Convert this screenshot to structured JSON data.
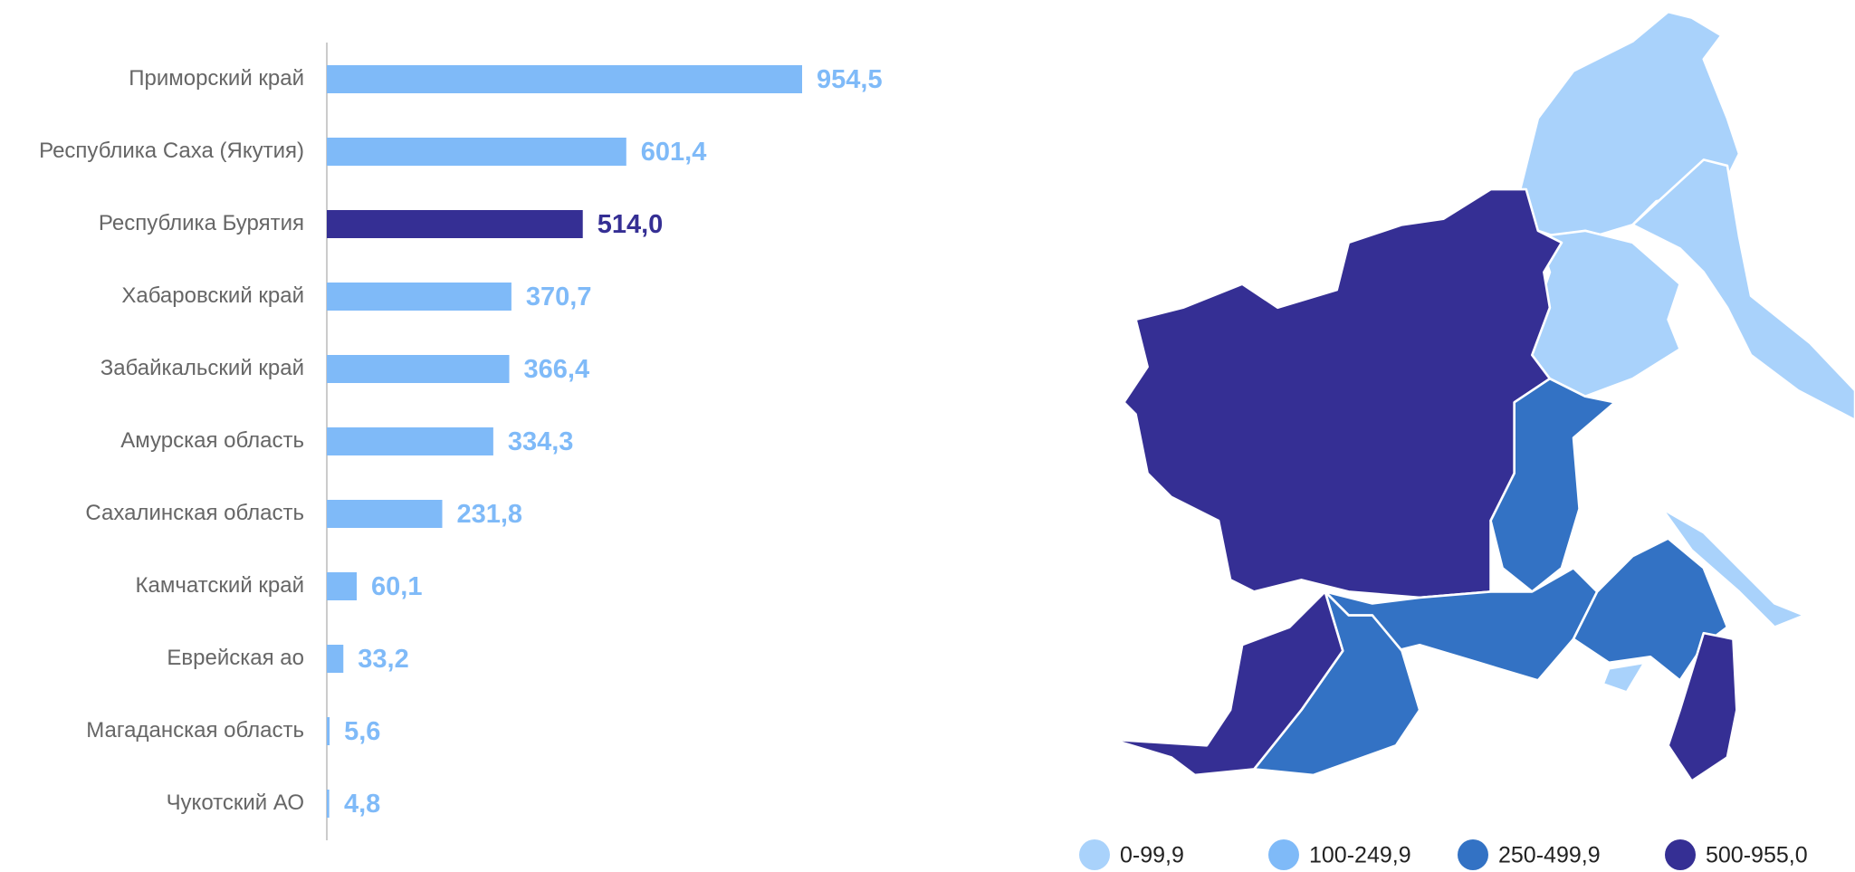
{
  "chart_data": {
    "type": "bar",
    "orientation": "horizontal",
    "categories": [
      "Приморский край",
      "Республика Саха (Якутия)",
      "Республика Бурятия",
      "Хабаровский край",
      "Забайкальский край",
      "Амурская область",
      "Сахалинская область",
      "Камчатский край",
      "Еврейская ао",
      "Магаданская область",
      "Чукотский АО"
    ],
    "values": [
      954.5,
      601.4,
      514.0,
      370.7,
      366.4,
      334.3,
      231.8,
      60.1,
      33.2,
      5.6,
      4.8
    ],
    "value_labels": [
      "954,5",
      "601,4",
      "514,0",
      "370,7",
      "366,4",
      "334,3",
      "231,8",
      "60,1",
      "33,2",
      "5,6",
      "4,8"
    ],
    "colors": [
      "#7fbaf8",
      "#7fbaf8",
      "#352f94",
      "#7fbaf8",
      "#7fbaf8",
      "#7fbaf8",
      "#7fbaf8",
      "#7fbaf8",
      "#7fbaf8",
      "#7fbaf8",
      "#7fbaf8"
    ]
  },
  "map_legend": {
    "labels": [
      "0-99,9",
      "100-249,9",
      "250-499,9",
      "500-955,0"
    ],
    "colors": [
      "#a9d2fb",
      "#7fbaf8",
      "#3372c4",
      "#352f94"
    ]
  }
}
